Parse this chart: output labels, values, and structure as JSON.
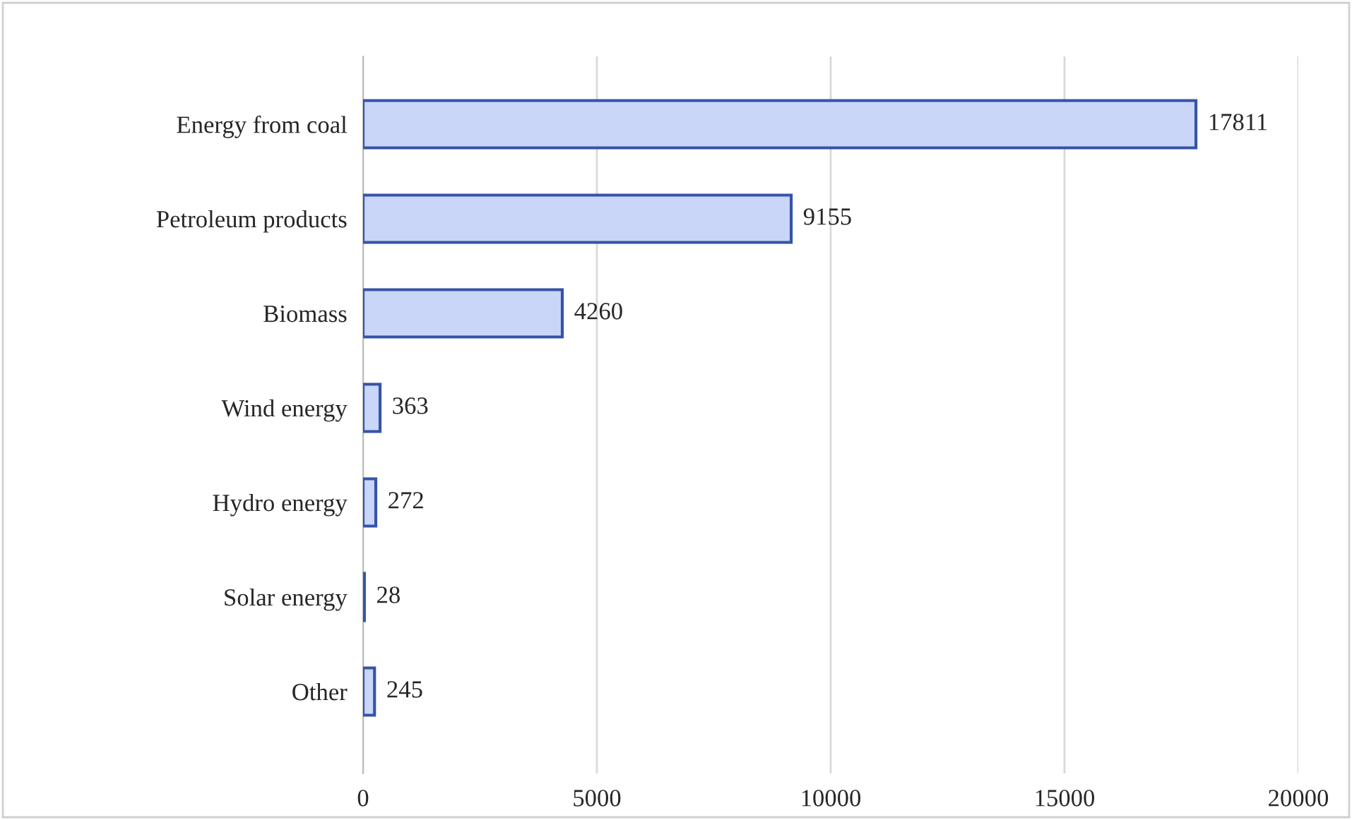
{
  "chart_data": {
    "type": "bar",
    "orientation": "horizontal",
    "categories": [
      "Energy from coal",
      "Petroleum products",
      "Biomass",
      "Wind energy",
      "Hydro energy",
      "Solar energy",
      "Other"
    ],
    "values": [
      17811,
      9155,
      4260,
      363,
      272,
      28,
      245
    ],
    "color": "#c9d6f7",
    "xlim": [
      0,
      20000
    ],
    "xticks": [
      0,
      5000,
      10000,
      15000,
      20000
    ],
    "grid": "x",
    "data_labels": true
  }
}
